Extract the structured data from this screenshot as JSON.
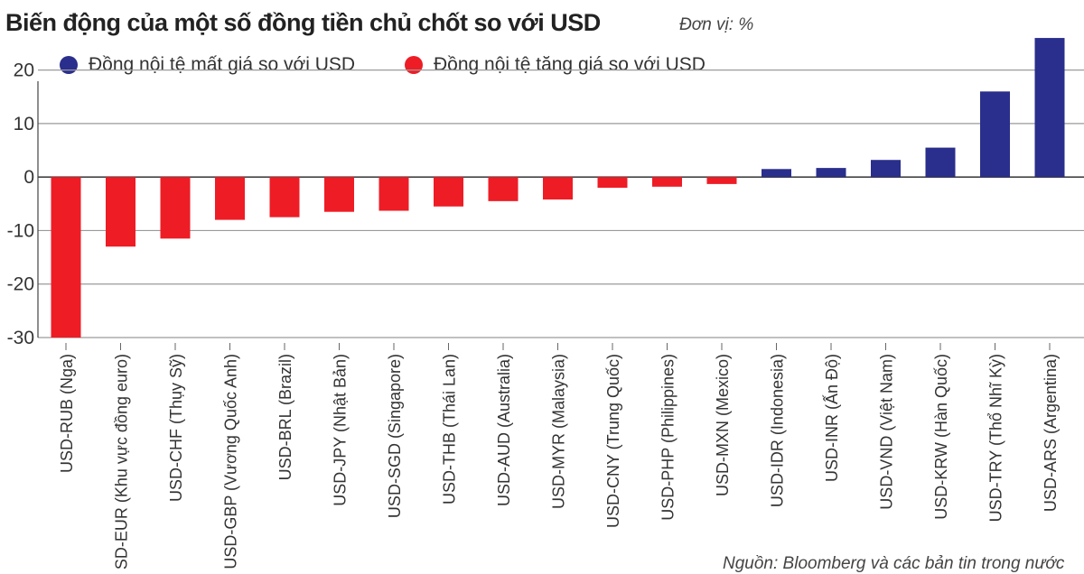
{
  "title": "Biến động của một số đồng tiền chủ chốt so với USD",
  "unit": "Đơn vị: %",
  "source": "Nguồn: Bloomberg và các bản tin trong nước",
  "legend": [
    {
      "label": "Đồng nội tệ mất giá so với USD",
      "color": "#2a2e8c"
    },
    {
      "label": "Đồng nội tệ tăng giá so với USD",
      "color": "#ee1c25"
    }
  ],
  "chart_data": {
    "type": "bar",
    "title": "Biến động của một số đồng tiền chủ chốt so với USD",
    "ylabel": "",
    "xlabel": "",
    "ylim": [
      -30,
      25
    ],
    "yticks": [
      20,
      10,
      0,
      -10,
      -20,
      -30
    ],
    "grid": true,
    "legend_position": "top-left",
    "categories": [
      "USD-RUB (Nga)",
      "USD-EUR (Khu vực đồng euro)",
      "USD-CHF (Thụy Sỹ)",
      "USD-GBP (Vương Quốc Anh)",
      "USD-BRL (Brazil)",
      "USD-JPY (Nhật Bản)",
      "USD-SGD (Singapore)",
      "USD-THB (Thái Lan)",
      "USD-AUD (Australia)",
      "USD-MYR (Malaysia)",
      "USD-CNY (Trung Quốc)",
      "USD-PHP (Philippines)",
      "USD-MXN (Mexico)",
      "USD-IDR (Indonesia)",
      "USD-INR (Ấn Độ)",
      "USD-VND (Việt Nam)",
      "USD-KRW (Hàn Quốc)",
      "USD-TRY (Thổ Nhĩ Kỳ)",
      "USD-ARS (Argentina)"
    ],
    "values": [
      -30,
      -13,
      -11.5,
      -8,
      -7.5,
      -6.5,
      -6.3,
      -5.5,
      -4.5,
      -4.2,
      -2,
      -1.8,
      -1.3,
      1.5,
      1.7,
      3.2,
      5.5,
      16,
      26
    ]
  }
}
